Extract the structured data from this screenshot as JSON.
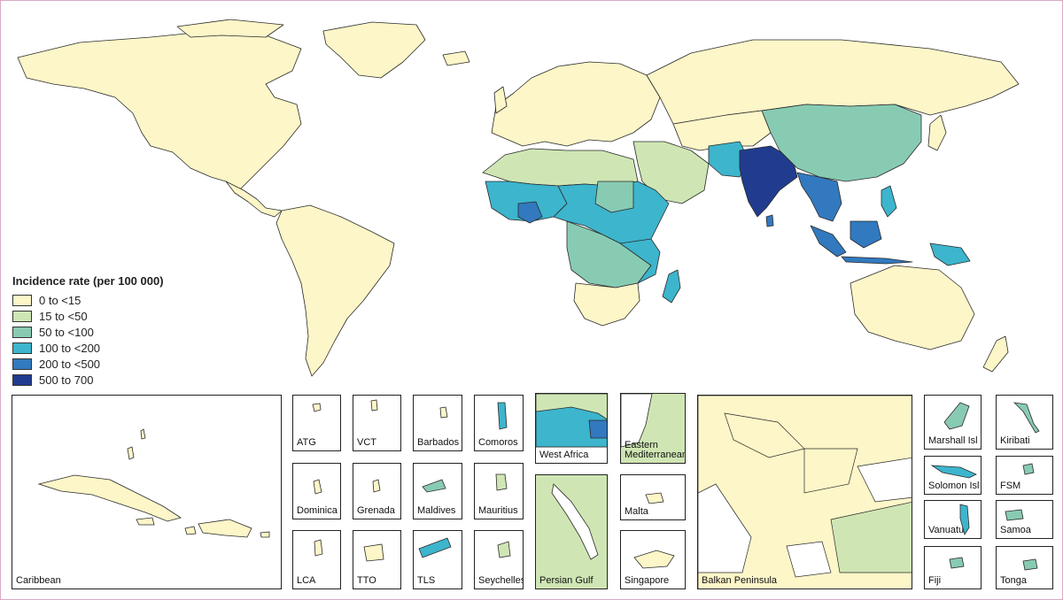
{
  "legend": {
    "title": "Incidence rate (per 100 000)",
    "items": [
      {
        "label": "0 to <15",
        "color": "#fdf6c8"
      },
      {
        "label": "15 to <50",
        "color": "#cfe6b4"
      },
      {
        "label": "50 to <100",
        "color": "#88cbb3"
      },
      {
        "label": "100 to <200",
        "color": "#3db5cd"
      },
      {
        "label": "200 to <500",
        "color": "#3279bf"
      },
      {
        "label": "500 to 700",
        "color": "#213c8f"
      }
    ]
  },
  "insets": {
    "caribbean": "Caribbean",
    "atg": "ATG",
    "vct": "VCT",
    "barbados": "Barbados",
    "comoros": "Comoros",
    "dominica": "Dominica",
    "grenada": "Grenada",
    "maldives": "Maldives",
    "mauritius": "Mauritius",
    "lca": "LCA",
    "tto": "TTO",
    "tls": "TLS",
    "seychelles": "Seychelles",
    "west_africa": "West Africa",
    "persian_gulf": "Persian Gulf",
    "eastern_med": "Eastern Mediterranean",
    "malta": "Malta",
    "singapore": "Singapore",
    "balkan": "Balkan Peninsula",
    "marshall": "Marshall Isl",
    "kiribati": "Kiribati",
    "solomon": "Solomon Isl",
    "fsm": "FSM",
    "vanuatu": "Vanuatu",
    "samoa": "Samoa",
    "fiji": "Fiji",
    "tonga": "Tonga"
  }
}
